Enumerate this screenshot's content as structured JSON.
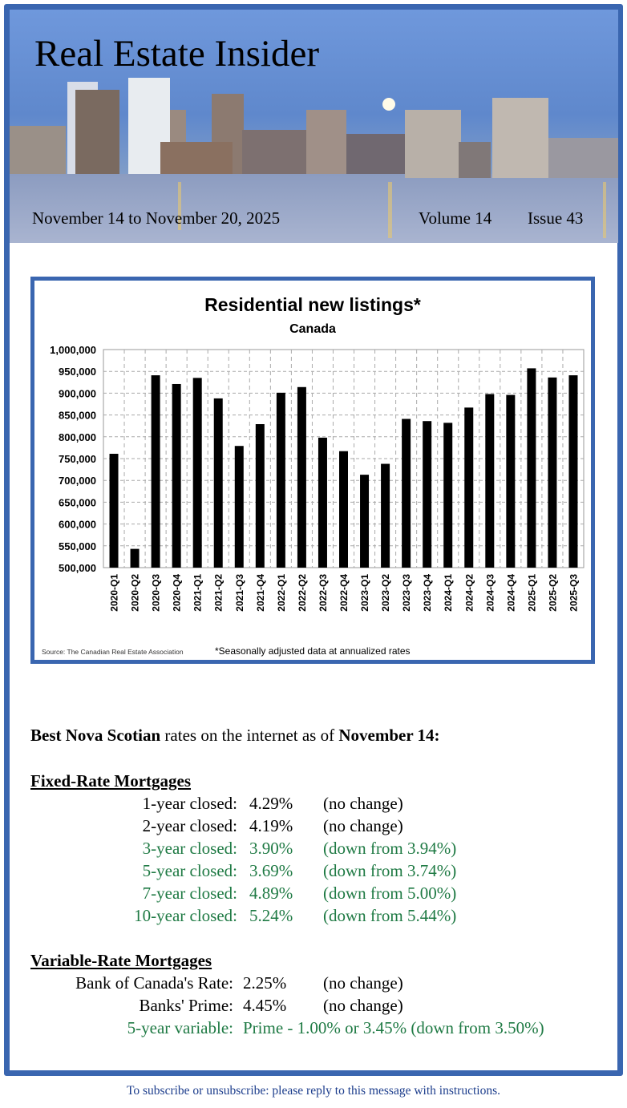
{
  "header": {
    "title": "Real Estate Insider",
    "date_range": "November 14 to November 20, 2025",
    "volume": "Volume 14",
    "issue": "Issue 43"
  },
  "chart_data": {
    "type": "bar",
    "title": "Residential new listings*",
    "subtitle": "Canada",
    "categories": [
      "2020-Q1",
      "2020-Q2",
      "2020-Q3",
      "2020-Q4",
      "2021-Q1",
      "2021-Q2",
      "2021-Q3",
      "2021-Q4",
      "2022-Q1",
      "2022-Q2",
      "2022-Q3",
      "2022-Q4",
      "2023-Q1",
      "2023-Q2",
      "2023-Q3",
      "2023-Q4",
      "2024-Q1",
      "2024-Q2",
      "2024-Q3",
      "2024-Q4",
      "2025-Q1",
      "2025-Q2",
      "2025-Q3"
    ],
    "values": [
      761000,
      543000,
      941000,
      921000,
      935000,
      888000,
      779000,
      829000,
      901000,
      914000,
      798000,
      767000,
      713000,
      738000,
      841000,
      836000,
      832000,
      867000,
      898000,
      896000,
      957000,
      936000,
      941000
    ],
    "ylim": [
      500000,
      1000000
    ],
    "yticks": [
      "500,000",
      "550,000",
      "600,000",
      "650,000",
      "700,000",
      "750,000",
      "800,000",
      "850,000",
      "900,000",
      "950,000",
      "1,000,000"
    ],
    "xlabel": "",
    "ylabel": "",
    "grid": true,
    "source": "Source: The Canadian Real Estate Association",
    "footnote": "*Seasonally adjusted data at annualized rates",
    "bar_color": "#000000"
  },
  "rates": {
    "intro_bold1": "Best Nova Scotian",
    "intro_mid": " rates on the internet as of ",
    "intro_bold2": "November 14:",
    "fixed_heading": "Fixed-Rate Mortgages",
    "fixed": [
      {
        "label": "1-year closed:",
        "rate": "4.29%",
        "change": "(no change)",
        "changed": false
      },
      {
        "label": "2-year closed:",
        "rate": "4.19%",
        "change": "(no change)",
        "changed": false
      },
      {
        "label": "3-year closed:",
        "rate": "3.90%",
        "change": "(down from 3.94%)",
        "changed": true
      },
      {
        "label": "5-year closed:",
        "rate": "3.69%",
        "change": "(down from 3.74%)",
        "changed": true
      },
      {
        "label": "7-year closed:",
        "rate": "4.89%",
        "change": "(down from 5.00%)",
        "changed": true
      },
      {
        "label": "10-year closed:",
        "rate": "5.24%",
        "change": "(down from 5.44%)",
        "changed": true
      }
    ],
    "variable_heading": "Variable-Rate Mortgages",
    "variable": [
      {
        "label": "Bank of Canada's Rate:",
        "rate": "2.25%",
        "change": "(no change)"
      },
      {
        "label": "Banks' Prime:",
        "rate": "4.45%",
        "change": "(no change)"
      },
      {
        "label": "5-year variable:",
        "rate": "Prime - 1.00% or 3.45% (down from 3.50%)"
      }
    ]
  },
  "footer": {
    "text": "To subscribe or unsubscribe: please reply to this message with instructions."
  },
  "colors": {
    "border": "#3a66b0",
    "green": "#1f7a44",
    "footer": "#1c3d8c"
  }
}
